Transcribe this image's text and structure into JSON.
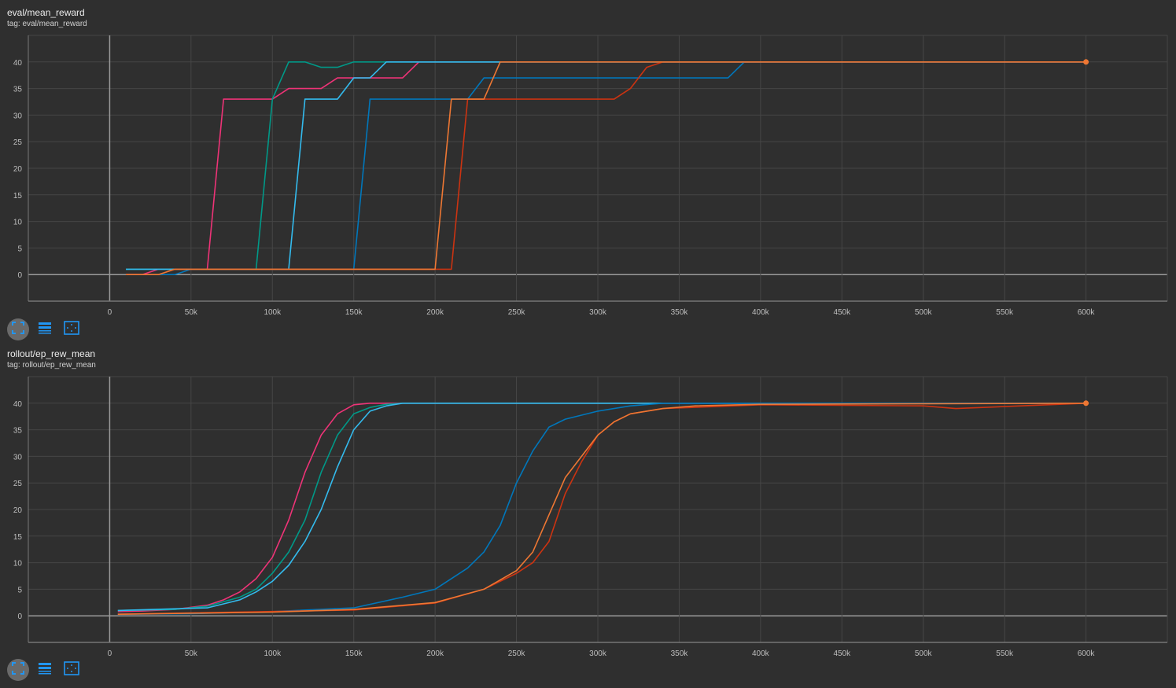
{
  "colors": {
    "background": "#2f2f2f",
    "grid": "#464646",
    "axis": "#9a9a9a"
  },
  "toolbar_icons": [
    "fit-domain-icon",
    "toggle-log-icon",
    "zoom-select-icon"
  ],
  "chart_data": [
    {
      "type": "line",
      "title": "eval/mean_reward",
      "tag": "tag: eval/mean_reward",
      "xlim": [
        -50000,
        650000
      ],
      "ylim": [
        -5,
        45
      ],
      "grid": true,
      "xticks": [
        0,
        50000,
        100000,
        150000,
        200000,
        250000,
        300000,
        350000,
        400000,
        450000,
        500000,
        550000,
        600000
      ],
      "xtick_labels": [
        "0",
        "50k",
        "100k",
        "150k",
        "200k",
        "250k",
        "300k",
        "350k",
        "400k",
        "450k",
        "500k",
        "550k",
        "600k"
      ],
      "yticks": [
        0,
        5,
        10,
        15,
        20,
        25,
        30,
        35,
        40
      ],
      "ytick_labels": [
        "0",
        "5",
        "10",
        "15",
        "20",
        "25",
        "30",
        "35",
        "40"
      ],
      "series": [
        {
          "color": "#ee3377",
          "points": [
            [
              10000,
              0
            ],
            [
              20000,
              0
            ],
            [
              30000,
              1
            ],
            [
              60000,
              1
            ],
            [
              70000,
              33
            ],
            [
              100000,
              33
            ],
            [
              110000,
              35
            ],
            [
              130000,
              35
            ],
            [
              140000,
              37
            ],
            [
              180000,
              37
            ],
            [
              190000,
              40
            ],
            [
              600000,
              40
            ]
          ]
        },
        {
          "color": "#009988",
          "points": [
            [
              10000,
              1
            ],
            [
              90000,
              1
            ],
            [
              100000,
              33
            ],
            [
              110000,
              40
            ],
            [
              120000,
              40
            ],
            [
              130000,
              39
            ],
            [
              140000,
              39
            ],
            [
              150000,
              40
            ],
            [
              600000,
              40
            ]
          ]
        },
        {
          "color": "#33bbee",
          "points": [
            [
              10000,
              1
            ],
            [
              110000,
              1
            ],
            [
              120000,
              33
            ],
            [
              140000,
              33
            ],
            [
              150000,
              37
            ],
            [
              160000,
              37
            ],
            [
              170000,
              40
            ],
            [
              600000,
              40
            ]
          ]
        },
        {
          "color": "#0077bb",
          "points": [
            [
              10000,
              0
            ],
            [
              40000,
              0
            ],
            [
              50000,
              1
            ],
            [
              150000,
              1
            ],
            [
              160000,
              33
            ],
            [
              220000,
              33
            ],
            [
              230000,
              37
            ],
            [
              380000,
              37
            ],
            [
              390000,
              40
            ],
            [
              600000,
              40
            ]
          ]
        },
        {
          "color": "#cc3311",
          "points": [
            [
              10000,
              0
            ],
            [
              30000,
              0
            ],
            [
              40000,
              1
            ],
            [
              210000,
              1
            ],
            [
              220000,
              33
            ],
            [
              310000,
              33
            ],
            [
              320000,
              35
            ],
            [
              330000,
              39
            ],
            [
              340000,
              40
            ],
            [
              600000,
              40
            ]
          ]
        },
        {
          "color": "#ee7733",
          "points": [
            [
              10000,
              0
            ],
            [
              30000,
              0
            ],
            [
              40000,
              1
            ],
            [
              200000,
              1
            ],
            [
              210000,
              33
            ],
            [
              230000,
              33
            ],
            [
              240000,
              40
            ],
            [
              600000,
              40
            ]
          ]
        }
      ]
    },
    {
      "type": "line",
      "title": "rollout/ep_rew_mean",
      "tag": "tag: rollout/ep_rew_mean",
      "xlim": [
        -50000,
        650000
      ],
      "ylim": [
        -5,
        45
      ],
      "grid": true,
      "xticks": [
        0,
        50000,
        100000,
        150000,
        200000,
        250000,
        300000,
        350000,
        400000,
        450000,
        500000,
        550000,
        600000
      ],
      "xtick_labels": [
        "0",
        "50k",
        "100k",
        "150k",
        "200k",
        "250k",
        "300k",
        "350k",
        "400k",
        "450k",
        "500k",
        "550k",
        "600k"
      ],
      "yticks": [
        0,
        5,
        10,
        15,
        20,
        25,
        30,
        35,
        40
      ],
      "ytick_labels": [
        "0",
        "5",
        "10",
        "15",
        "20",
        "25",
        "30",
        "35",
        "40"
      ],
      "series": [
        {
          "color": "#ee3377",
          "points": [
            [
              5000,
              0.8
            ],
            [
              20000,
              0.9
            ],
            [
              40000,
              1.2
            ],
            [
              60000,
              2
            ],
            [
              70000,
              3
            ],
            [
              80000,
              4.5
            ],
            [
              90000,
              7
            ],
            [
              100000,
              11
            ],
            [
              110000,
              18
            ],
            [
              120000,
              27
            ],
            [
              130000,
              34
            ],
            [
              140000,
              38
            ],
            [
              150000,
              39.7
            ],
            [
              160000,
              40
            ],
            [
              600000,
              40
            ]
          ]
        },
        {
          "color": "#009988",
          "points": [
            [
              5000,
              1
            ],
            [
              40000,
              1.2
            ],
            [
              60000,
              1.8
            ],
            [
              80000,
              3.5
            ],
            [
              90000,
              5
            ],
            [
              100000,
              8
            ],
            [
              110000,
              12
            ],
            [
              120000,
              18
            ],
            [
              130000,
              27
            ],
            [
              140000,
              34
            ],
            [
              150000,
              38
            ],
            [
              160000,
              39.2
            ],
            [
              170000,
              39.8
            ],
            [
              180000,
              40
            ],
            [
              600000,
              40
            ]
          ]
        },
        {
          "color": "#33bbee",
          "points": [
            [
              5000,
              1
            ],
            [
              60000,
              1.5
            ],
            [
              80000,
              3
            ],
            [
              90000,
              4.5
            ],
            [
              100000,
              6.5
            ],
            [
              110000,
              9.5
            ],
            [
              120000,
              14
            ],
            [
              130000,
              20
            ],
            [
              140000,
              28
            ],
            [
              150000,
              35
            ],
            [
              160000,
              38.5
            ],
            [
              170000,
              39.5
            ],
            [
              180000,
              40
            ],
            [
              600000,
              40
            ]
          ]
        },
        {
          "color": "#0077bb",
          "points": [
            [
              5000,
              0.3
            ],
            [
              50000,
              0.4
            ],
            [
              100000,
              0.8
            ],
            [
              150000,
              1.5
            ],
            [
              180000,
              3.5
            ],
            [
              200000,
              5
            ],
            [
              210000,
              7
            ],
            [
              220000,
              9
            ],
            [
              230000,
              12
            ],
            [
              240000,
              17
            ],
            [
              250000,
              25
            ],
            [
              260000,
              31
            ],
            [
              270000,
              35.5
            ],
            [
              280000,
              37
            ],
            [
              300000,
              38.5
            ],
            [
              320000,
              39.5
            ],
            [
              340000,
              40
            ],
            [
              600000,
              40
            ]
          ]
        },
        {
          "color": "#cc3311",
          "points": [
            [
              5000,
              0.3
            ],
            [
              150000,
              1.1
            ],
            [
              200000,
              2.4
            ],
            [
              230000,
              5
            ],
            [
              250000,
              8
            ],
            [
              260000,
              10
            ],
            [
              270000,
              14
            ],
            [
              280000,
              23
            ],
            [
              290000,
              29
            ],
            [
              300000,
              34
            ],
            [
              310000,
              36.5
            ],
            [
              320000,
              38
            ],
            [
              340000,
              39
            ],
            [
              400000,
              39.7
            ],
            [
              500000,
              39.5
            ],
            [
              520000,
              39
            ],
            [
              560000,
              39.5
            ],
            [
              600000,
              40
            ]
          ]
        },
        {
          "color": "#ee7733",
          "points": [
            [
              5000,
              0.3
            ],
            [
              100000,
              0.7
            ],
            [
              150000,
              1.2
            ],
            [
              200000,
              2.5
            ],
            [
              230000,
              5
            ],
            [
              250000,
              8.5
            ],
            [
              260000,
              12
            ],
            [
              270000,
              19
            ],
            [
              280000,
              26
            ],
            [
              290000,
              30
            ],
            [
              300000,
              34
            ],
            [
              310000,
              36.5
            ],
            [
              320000,
              38
            ],
            [
              340000,
              39
            ],
            [
              360000,
              39.5
            ],
            [
              400000,
              39.8
            ],
            [
              600000,
              40
            ]
          ]
        }
      ]
    }
  ]
}
